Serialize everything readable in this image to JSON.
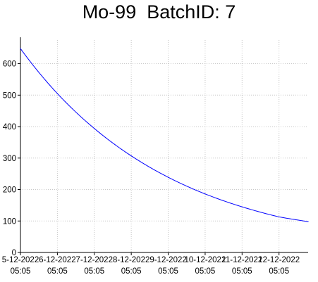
{
  "chart_data": {
    "type": "line",
    "title": "Mo-99  BatchID: 7",
    "xlabel": "",
    "ylabel": "",
    "ylim": [
      0,
      675
    ],
    "y_ticks": [
      0,
      100,
      200,
      300,
      400,
      500,
      600
    ],
    "x_ticks": [
      {
        "date": "5-12-2022",
        "time": "05:05"
      },
      {
        "date": "6-12-2022",
        "time": "05:05"
      },
      {
        "date": "7-12-2022",
        "time": "05:05"
      },
      {
        "date": "8-12-2022",
        "time": "05:05"
      },
      {
        "date": "9-12-2022",
        "time": "05:05"
      },
      {
        "date": "10-12-2022",
        "time": "05:05"
      },
      {
        "date": "11-12-2022",
        "time": "05:05"
      },
      {
        "date": "12-12-2022",
        "time": "05:05"
      }
    ],
    "xlim": [
      "5-12-2022 05:05",
      "13-12-2022 00:00"
    ],
    "grid": true,
    "series": [
      {
        "color": "#0000ff",
        "x": [
          "5-12-2022 05:05",
          "6-12-2022 05:05",
          "7-12-2022 05:05",
          "8-12-2022 05:05",
          "9-12-2022 05:05",
          "10-12-2022 05:05",
          "11-12-2022 05:05",
          "12-12-2022 05:05",
          "13-12-2022 00:00"
        ],
        "values": [
          648,
          505,
          394,
          307,
          239,
          186,
          145,
          113,
          98
        ]
      }
    ]
  }
}
